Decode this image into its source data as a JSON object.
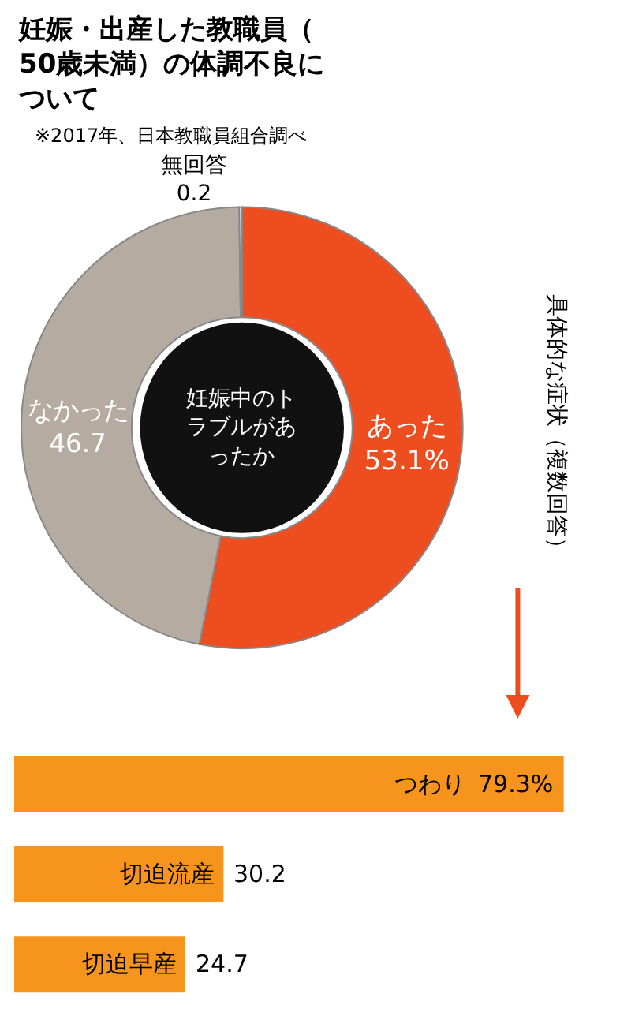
{
  "chart_data": [
    {
      "type": "donut",
      "title": "妊娠・出産した教職員（50歳未満）の体調不良について",
      "subtitle": "※2017年、日本教職員組合調べ",
      "categories": [
        "あった",
        "なかった",
        "無回答"
      ],
      "values": [
        53.1,
        46.7,
        0.2
      ],
      "colors": [
        "#ee4e1f",
        "#b5aba1",
        "#ffffff"
      ],
      "value_labels": [
        "53.1%",
        "46.7",
        "0.2"
      ],
      "annotations": [
        "妊娠中のトラブルがあったか"
      ]
    },
    {
      "type": "bar",
      "orientation": "horizontal",
      "title": "具体的な症状（複数回答）",
      "categories": [
        "つわり",
        "切迫流産",
        "切迫早産"
      ],
      "values": [
        79.3,
        30.2,
        24.7
      ],
      "color": "#f7941d",
      "value_labels": [
        "79.3%",
        "30.2",
        "24.7"
      ],
      "tick_labels": false
    }
  ]
}
